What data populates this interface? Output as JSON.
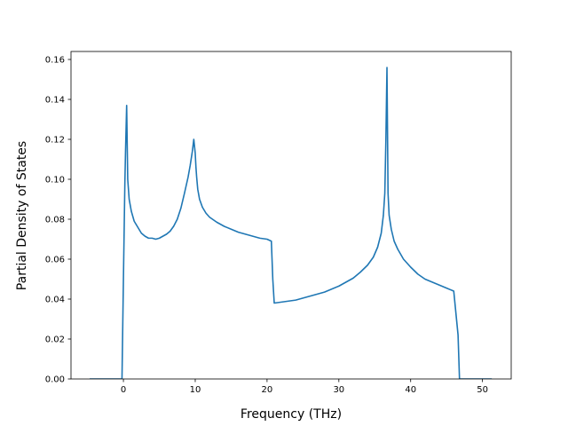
{
  "chart_data": {
    "type": "line",
    "title": "",
    "xlabel": "Frequency (THz)",
    "ylabel": "Partial Density of States",
    "xlim": [
      -7.3,
      54.0
    ],
    "ylim": [
      0.0,
      0.164
    ],
    "xticks": [
      0,
      10,
      20,
      30,
      40,
      50
    ],
    "yticks": [
      0.0,
      0.02,
      0.04,
      0.06,
      0.08,
      0.1,
      0.12,
      0.14,
      0.16
    ],
    "ytick_labels": [
      "0.00",
      "0.02",
      "0.04",
      "0.06",
      "0.08",
      "0.10",
      "0.12",
      "0.14",
      "0.16"
    ],
    "grid": false,
    "series": [
      {
        "color": "#1f77b4",
        "x": [
          -4.7,
          -0.2,
          0.0,
          0.2,
          0.3,
          0.45,
          0.6,
          0.8,
          1.1,
          1.5,
          2.0,
          2.5,
          3.0,
          3.5,
          4.0,
          4.5,
          5.0,
          5.5,
          6.0,
          6.5,
          7.0,
          7.5,
          8.0,
          8.5,
          9.0,
          9.3,
          9.6,
          9.8,
          10.0,
          10.1,
          10.2,
          10.35,
          10.6,
          11.0,
          11.5,
          12.0,
          13.0,
          14.0,
          15.0,
          16.0,
          17.0,
          18.0,
          19.0,
          20.0,
          20.6,
          20.8,
          21.0,
          22.0,
          24.0,
          26.0,
          28.0,
          30.0,
          32.0,
          33.0,
          34.0,
          34.8,
          35.4,
          35.9,
          36.2,
          36.4,
          36.55,
          36.7,
          36.85,
          37.0,
          37.3,
          37.7,
          38.2,
          39.0,
          40.0,
          41.0,
          42.0,
          43.0,
          44.0,
          45.0,
          46.0,
          46.6,
          46.8,
          47.0,
          48.0,
          50.0,
          51.3
        ],
        "y": [
          0.0,
          0.0,
          0.05,
          0.098,
          0.115,
          0.137,
          0.1,
          0.09,
          0.084,
          0.079,
          0.076,
          0.073,
          0.0715,
          0.0705,
          0.0705,
          0.07,
          0.0705,
          0.0715,
          0.0725,
          0.074,
          0.0765,
          0.08,
          0.0855,
          0.093,
          0.101,
          0.107,
          0.114,
          0.12,
          0.113,
          0.106,
          0.101,
          0.095,
          0.09,
          0.086,
          0.083,
          0.081,
          0.0785,
          0.0765,
          0.075,
          0.0735,
          0.0725,
          0.0715,
          0.0705,
          0.07,
          0.069,
          0.05,
          0.038,
          0.0385,
          0.0395,
          0.0415,
          0.0435,
          0.0465,
          0.0505,
          0.0535,
          0.057,
          0.061,
          0.066,
          0.073,
          0.082,
          0.093,
          0.12,
          0.156,
          0.093,
          0.082,
          0.075,
          0.069,
          0.065,
          0.06,
          0.056,
          0.0525,
          0.05,
          0.0485,
          0.047,
          0.0455,
          0.044,
          0.022,
          0.0,
          0.0,
          0.0,
          0.0,
          0.0
        ]
      }
    ]
  }
}
